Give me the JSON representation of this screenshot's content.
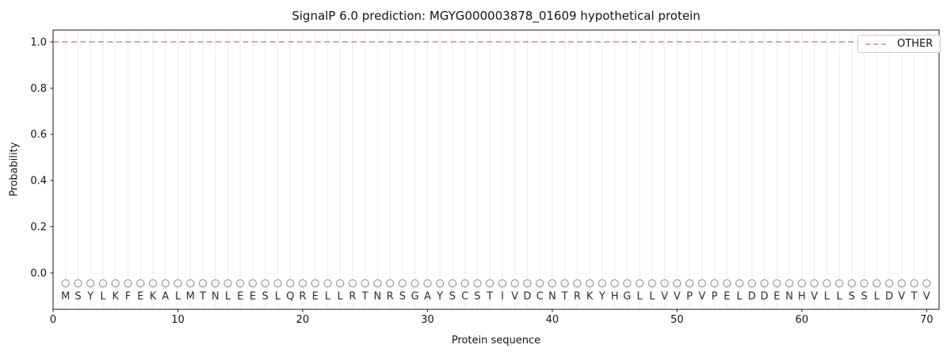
{
  "figure": {
    "title": "SignalP 6.0 prediction: MGYG000003878_01609 hypothetical protein",
    "xlabel": "Protein sequence",
    "ylabel": "Probability"
  },
  "chart_data": {
    "type": "line",
    "title": "SignalP 6.0 prediction: MGYG000003878_01609 hypothetical protein",
    "xlabel": "Protein sequence",
    "ylabel": "Probability",
    "xlim": [
      0,
      71
    ],
    "ylim": [
      -0.1575,
      1.051
    ],
    "x_ticks": [
      0,
      10,
      20,
      30,
      40,
      50,
      60,
      70
    ],
    "y_ticks": [
      0.0,
      0.2,
      0.4,
      0.6,
      0.8,
      1.0
    ],
    "grid": {
      "vertical_per_residue": true,
      "color": "#efefef"
    },
    "legend": {
      "position": "upper-right",
      "entries": [
        {
          "label": "OTHER",
          "color": "#ef8080",
          "linestyle": "dashed"
        }
      ]
    },
    "sequence": "MSYLKFEKALMTNLEESLQRELLRTNRSGAYSCSTIVDCNTRKYHGLLVVPVPELDDENHVLLSSLDVTV",
    "x_start": 1,
    "series": [
      {
        "name": "OTHER",
        "color": "#ef8080",
        "linestyle": "dashed",
        "extend_full_width": true,
        "values": [
          1,
          1,
          1,
          1,
          1,
          1,
          1,
          1,
          1,
          1,
          1,
          1,
          1,
          1,
          1,
          1,
          1,
          1,
          1,
          1,
          1,
          1,
          1,
          1,
          1,
          1,
          1,
          1,
          1,
          1,
          1,
          1,
          1,
          1,
          1,
          1,
          1,
          1,
          1,
          1,
          1,
          1,
          1,
          1,
          1,
          1,
          1,
          1,
          1,
          1,
          1,
          1,
          1,
          1,
          1,
          1,
          1,
          1,
          1,
          1,
          1,
          1,
          1,
          1,
          1,
          1,
          1,
          1,
          1,
          1
        ]
      }
    ],
    "marker": {
      "symbol": "circle-open",
      "color": "#9a9a9a",
      "y": -0.045
    },
    "sequence_letter_y": -0.1
  }
}
